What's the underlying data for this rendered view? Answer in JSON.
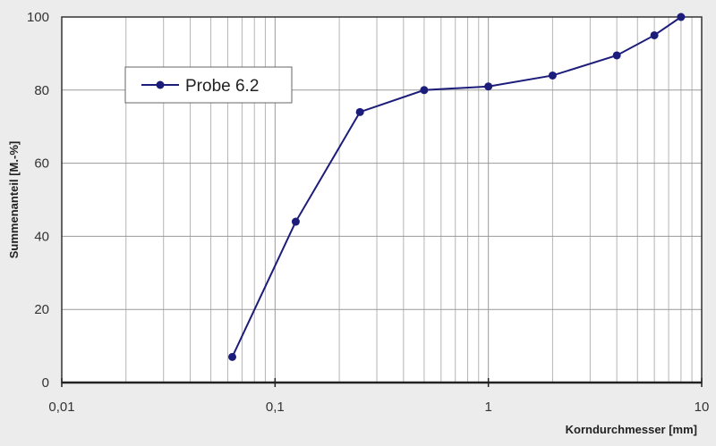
{
  "chart_data": {
    "type": "line",
    "title": "",
    "xlabel": "Korndurchmesser [mm]",
    "ylabel": "Summenanteil [M.-%]",
    "xscale": "log",
    "xlim": [
      0.01,
      10
    ],
    "ylim": [
      0,
      100
    ],
    "grid": true,
    "legend_position": "top-left",
    "x_tick_labels": [
      "0,01",
      "0,1",
      "1",
      "10"
    ],
    "y_tick_labels": [
      "0",
      "20",
      "40",
      "60",
      "80",
      "100"
    ],
    "series": [
      {
        "name": "Probe 6.2",
        "color": "#1c1c7a",
        "x": [
          0.063,
          0.125,
          0.25,
          0.5,
          1,
          2,
          4,
          6,
          8
        ],
        "y": [
          7,
          44,
          74,
          80,
          81,
          84,
          89.5,
          95,
          100
        ]
      }
    ]
  }
}
